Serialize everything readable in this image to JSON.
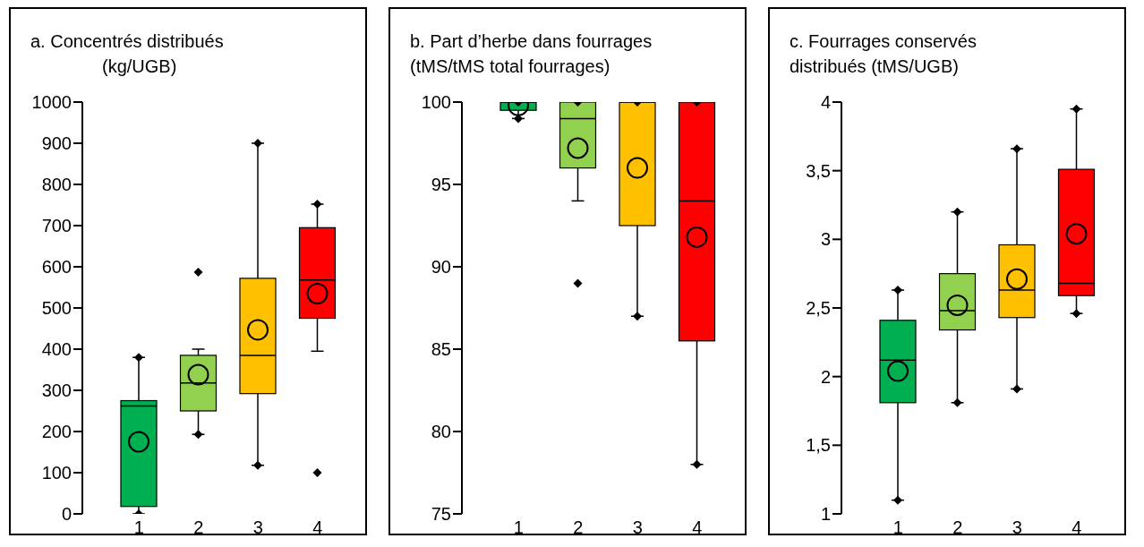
{
  "chart_data": [
    {
      "type": "box",
      "title": "a. Concentrés distribués",
      "subtitle": "(kg/UGB)",
      "categories": [
        "1",
        "2",
        "3",
        "4"
      ],
      "colors": [
        "#00b050",
        "#92d050",
        "#ffc000",
        "#ff0000"
      ],
      "ylim": [
        0,
        1000
      ],
      "yticks": [
        0,
        100,
        200,
        300,
        400,
        500,
        600,
        700,
        800,
        900,
        1000
      ],
      "boxes": [
        {
          "low": 0,
          "q1": 18,
          "median": 262,
          "q3": 275,
          "high": 380,
          "mean": 175,
          "outliers": [
            0,
            380
          ]
        },
        {
          "low": 193,
          "q1": 250,
          "median": 318,
          "q3": 385,
          "high": 400,
          "mean": 338,
          "outliers": [
            193,
            587
          ]
        },
        {
          "low": 118,
          "q1": 292,
          "median": 385,
          "q3": 572,
          "high": 900,
          "mean": 447,
          "outliers": [
            118,
            900
          ]
        },
        {
          "low": 395,
          "q1": 475,
          "median": 568,
          "q3": 695,
          "high": 752,
          "mean": 535,
          "outliers": [
            100,
            752
          ]
        }
      ]
    },
    {
      "type": "box",
      "title": "b. Part d’herbe dans fourrages",
      "subtitle": "(tMS/tMS total fourrages)",
      "categories": [
        "1",
        "2",
        "3",
        "4"
      ],
      "colors": [
        "#00b050",
        "#92d050",
        "#ffc000",
        "#ff0000"
      ],
      "ylim": [
        75,
        100
      ],
      "yticks": [
        75,
        80,
        85,
        90,
        95,
        100
      ],
      "boxes": [
        {
          "low": 99,
          "q1": 99.5,
          "median": 100,
          "q3": 100,
          "high": 100,
          "mean": 99.8,
          "outliers": [
            99,
            100
          ]
        },
        {
          "low": 94,
          "q1": 96,
          "median": 99,
          "q3": 100,
          "high": 100,
          "mean": 97.2,
          "outliers": [
            89,
            100
          ]
        },
        {
          "low": 87,
          "q1": 92.5,
          "median": 100,
          "q3": 100,
          "high": 100,
          "mean": 96,
          "outliers": [
            87,
            100
          ]
        },
        {
          "low": 78,
          "q1": 85.5,
          "median": 94,
          "q3": 100,
          "high": 100,
          "mean": 91.8,
          "outliers": [
            78,
            100
          ]
        }
      ]
    },
    {
      "type": "box",
      "title": "c. Fourrages conservés",
      "subtitle": "distribués (tMS/UGB)",
      "categories": [
        "1",
        "2",
        "3",
        "4"
      ],
      "colors": [
        "#00b050",
        "#92d050",
        "#ffc000",
        "#ff0000"
      ],
      "ylim": [
        1,
        4
      ],
      "yticks": [
        1,
        {
          "value": 1.5,
          "label": "1,5"
        },
        2,
        {
          "value": 2.5,
          "label": "2,5"
        },
        3,
        {
          "value": 3.5,
          "label": "3,5"
        },
        4
      ],
      "boxes": [
        {
          "low": 1.1,
          "q1": 1.81,
          "median": 2.12,
          "q3": 2.41,
          "high": 2.63,
          "mean": 2.04,
          "outliers": [
            1.1,
            2.63
          ]
        },
        {
          "low": 1.81,
          "q1": 2.34,
          "median": 2.48,
          "q3": 2.75,
          "high": 3.2,
          "mean": 2.52,
          "outliers": [
            1.81,
            3.2
          ]
        },
        {
          "low": 1.91,
          "q1": 2.43,
          "median": 2.63,
          "q3": 2.96,
          "high": 3.66,
          "mean": 2.71,
          "outliers": [
            1.91,
            3.66
          ]
        },
        {
          "low": 2.46,
          "q1": 2.59,
          "median": 2.68,
          "q3": 3.51,
          "high": 3.95,
          "mean": 3.04,
          "outliers": [
            2.46,
            3.95
          ]
        }
      ]
    }
  ]
}
